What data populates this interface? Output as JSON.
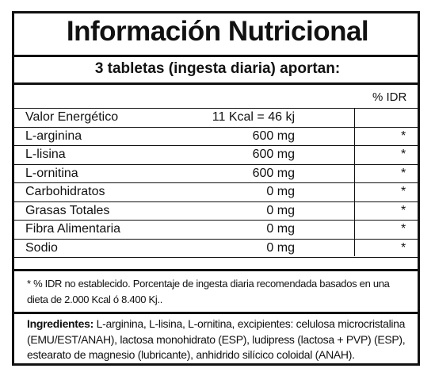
{
  "title": "Información Nutricional",
  "subtitle": "3 tabletas (ingesta diaria) aportan:",
  "idr_header": "% IDR",
  "rows": [
    {
      "name": "Valor Energético",
      "amount": "11 Kcal = 46 kj",
      "idr": ""
    },
    {
      "name": "L-arginina",
      "amount": "600 mg",
      "idr": "*"
    },
    {
      "name": "L-lisina",
      "amount": "600 mg",
      "idr": "*"
    },
    {
      "name": "L-ornitina",
      "amount": "600 mg",
      "idr": "*"
    },
    {
      "name": "Carbohidratos",
      "amount": "0 mg",
      "idr": "*"
    },
    {
      "name": "Grasas Totales",
      "amount": "0 mg",
      "idr": "*"
    },
    {
      "name": "Fibra Alimentaria",
      "amount": "0 mg",
      "idr": "*"
    },
    {
      "name": "Sodio",
      "amount": "0 mg",
      "idr": "*"
    }
  ],
  "footnote": "* % IDR no establecido. Porcentaje de ingesta diaria recomendada basados en una dieta de 2.000 Kcal ó 8.400 Kj..",
  "ingredients_label": "Ingredientes:",
  "ingredients_text": " L-arginina, L-lisina, L-ornitina, excipientes: celulosa microcristalina (EMU/EST/ANAH), lactosa monohidrato (ESP), ludipress (lactosa + PVP) (ESP), estearato de magnesio (lubricante), anhidrido silícico coloidal (ANAH)."
}
